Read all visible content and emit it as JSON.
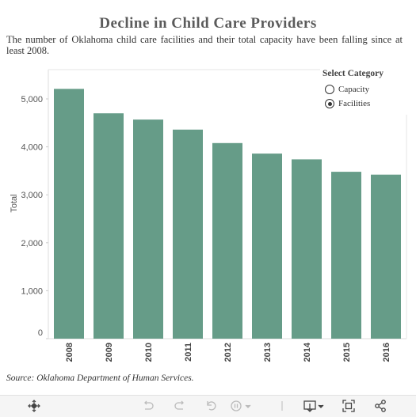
{
  "title": "Decline in Child Care Providers",
  "subtitle": "The number of Oklahoma child care facilities and their total capacity have been falling since at least 2008.",
  "legend": {
    "title": "Select Category",
    "options": [
      {
        "label": "Capacity",
        "selected": false
      },
      {
        "label": "Facilities",
        "selected": true
      }
    ]
  },
  "source": "Source: Oklahoma Department of Human Services.",
  "chart_data": {
    "type": "bar",
    "title": "Decline in Child Care Providers",
    "xlabel": "",
    "ylabel": "Total",
    "categories": [
      "2008",
      "2009",
      "2010",
      "2011",
      "2012",
      "2013",
      "2014",
      "2015",
      "2016"
    ],
    "values": [
      5210,
      4700,
      4570,
      4360,
      4080,
      3860,
      3740,
      3480,
      3420
    ],
    "yticks": [
      "0",
      "1,000",
      "2,000",
      "3,000",
      "4,000",
      "5,000"
    ],
    "ylim": [
      0,
      5500
    ],
    "grid": false,
    "bar_color": "#669c88"
  },
  "toolbar": {
    "icons": [
      "move-icon",
      "undo-icon",
      "redo-icon",
      "revert-icon",
      "pause-icon",
      "download-icon",
      "fullscreen-icon",
      "share-icon"
    ]
  }
}
